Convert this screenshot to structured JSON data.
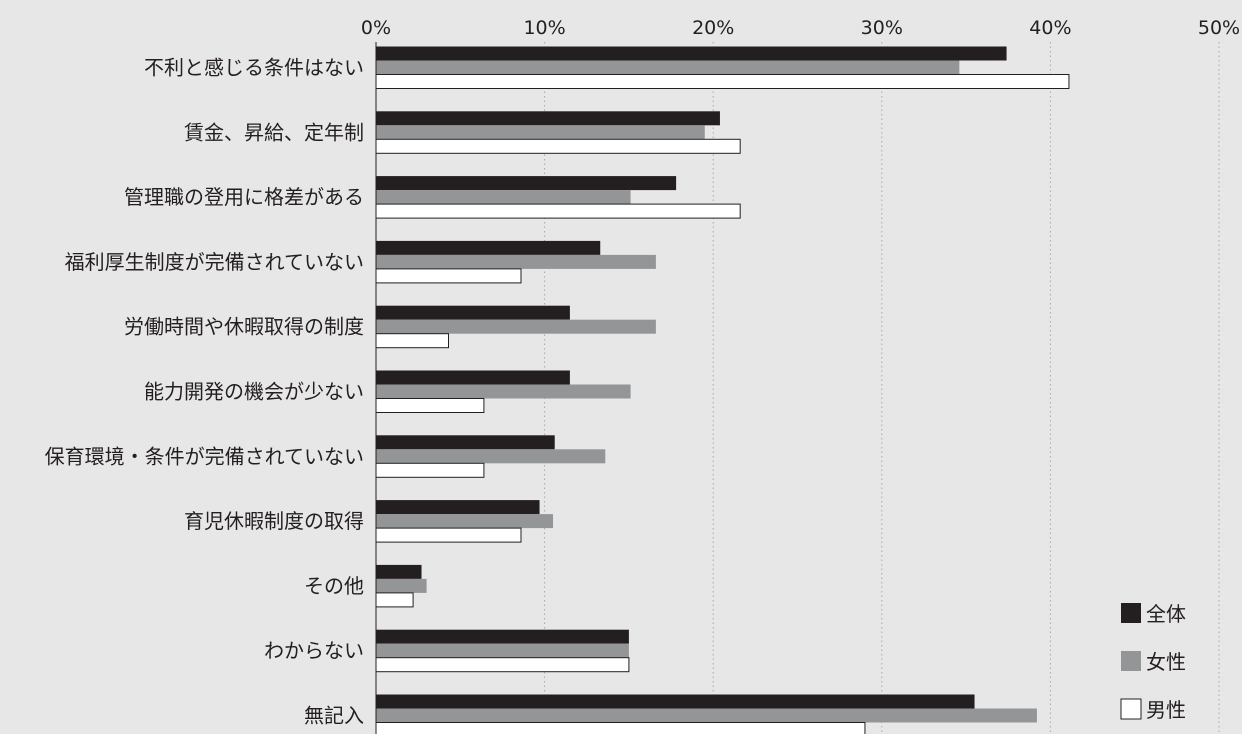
{
  "chart_data": {
    "type": "bar",
    "orientation": "horizontal",
    "xlim": [
      0,
      50
    ],
    "x_ticks": [
      "0%",
      "10%",
      "20%",
      "30%",
      "40%",
      "50%"
    ],
    "grid": true,
    "legend_position": "bottom-right",
    "categories": [
      "不利と感じる条件はない",
      "賃金、昇給、定年制",
      "管理職の登用に格差がある",
      "福利厚生制度が完備されていない",
      "労働時間や休暇取得の制度",
      "能力開発の機会が少ない",
      "保育環境・条件が完備されていない",
      "育児休暇制度の取得",
      "その他",
      "わからない",
      "無記入"
    ],
    "series": [
      {
        "name": "全体",
        "color": "#231f20",
        "values": [
          37.4,
          20.4,
          17.8,
          13.3,
          11.5,
          11.5,
          10.6,
          9.7,
          2.7,
          15.0,
          35.5
        ]
      },
      {
        "name": "女性",
        "color": "#939597",
        "values": [
          34.6,
          19.5,
          15.1,
          16.6,
          16.6,
          15.1,
          13.6,
          10.5,
          3.0,
          15.0,
          39.2
        ]
      },
      {
        "name": "男性",
        "color": "#ffffff",
        "values": [
          41.1,
          21.6,
          21.6,
          8.6,
          4.3,
          6.4,
          6.4,
          8.6,
          2.2,
          15.0,
          29.0
        ]
      }
    ]
  }
}
